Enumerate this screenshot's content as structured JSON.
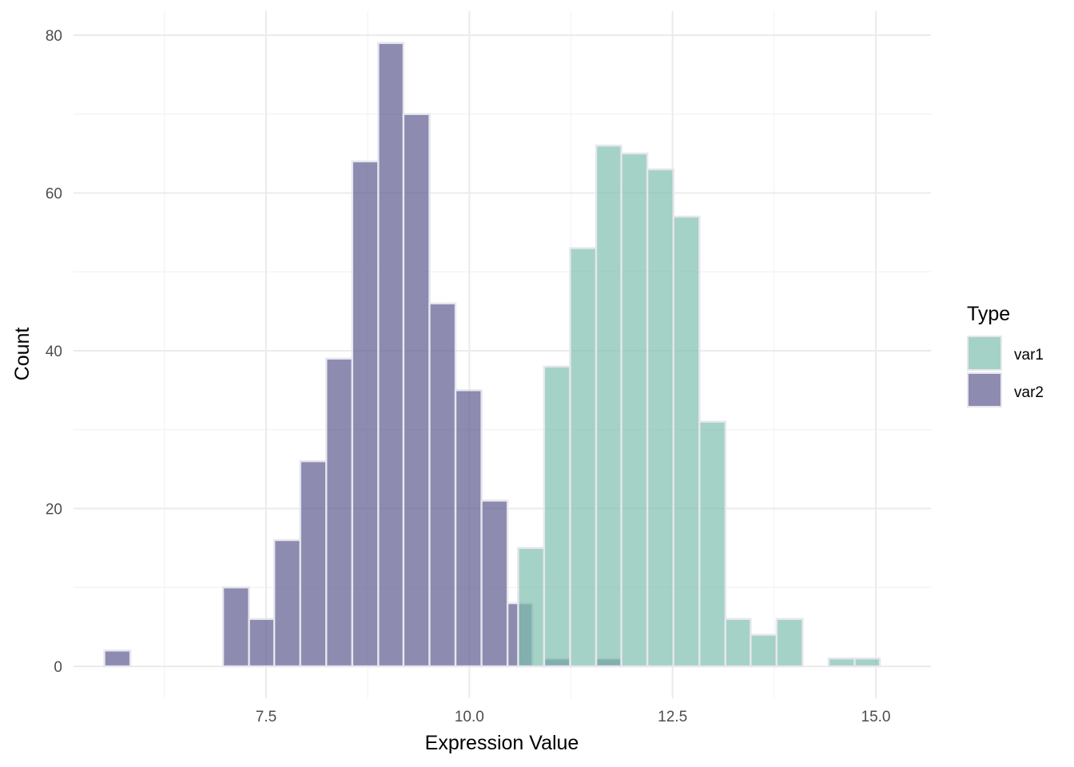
{
  "chart_data": {
    "type": "bar",
    "subtype": "histogram",
    "title": "",
    "xlabel": "Expression Value",
    "ylabel": "Count",
    "xlim": [
      5.4,
      15.6
    ],
    "ylim": [
      -3,
      80
    ],
    "x_ticks": [
      7.5,
      10.0,
      12.5,
      15.0
    ],
    "x_tick_labels": [
      "7.5",
      "10.0",
      "12.5",
      "15.0"
    ],
    "y_ticks": [
      0,
      20,
      40,
      60,
      80
    ],
    "y_tick_labels": [
      "0",
      "20",
      "40",
      "60",
      "80"
    ],
    "grid": true,
    "legend_position": "right",
    "legend_title": "Type",
    "bin_width": 0.3183,
    "bin_start": 5.51,
    "series": [
      {
        "name": "var1",
        "color": "#7fbfae",
        "bins": [
          {
            "x0": 10.6,
            "x1": 10.92,
            "count": 15
          },
          {
            "x0": 10.92,
            "x1": 11.24,
            "count": 38
          },
          {
            "x0": 11.24,
            "x1": 11.56,
            "count": 53
          },
          {
            "x0": 11.56,
            "x1": 11.87,
            "count": 66
          },
          {
            "x0": 11.87,
            "x1": 12.19,
            "count": 65
          },
          {
            "x0": 12.19,
            "x1": 12.51,
            "count": 63
          },
          {
            "x0": 12.51,
            "x1": 12.83,
            "count": 57
          },
          {
            "x0": 12.83,
            "x1": 13.15,
            "count": 31
          },
          {
            "x0": 13.15,
            "x1": 13.46,
            "count": 6
          },
          {
            "x0": 13.46,
            "x1": 13.78,
            "count": 4
          },
          {
            "x0": 13.78,
            "x1": 14.1,
            "count": 6
          },
          {
            "x0": 14.42,
            "x1": 14.74,
            "count": 1
          },
          {
            "x0": 14.74,
            "x1": 15.05,
            "count": 1
          }
        ]
      },
      {
        "name": "var2",
        "color": "#5c5a8f",
        "bins": [
          {
            "x0": 5.51,
            "x1": 5.83,
            "count": 2
          },
          {
            "x0": 6.97,
            "x1": 7.29,
            "count": 10
          },
          {
            "x0": 7.29,
            "x1": 7.6,
            "count": 6
          },
          {
            "x0": 7.6,
            "x1": 7.92,
            "count": 16
          },
          {
            "x0": 7.92,
            "x1": 8.24,
            "count": 26
          },
          {
            "x0": 8.24,
            "x1": 8.56,
            "count": 39
          },
          {
            "x0": 8.56,
            "x1": 8.88,
            "count": 64
          },
          {
            "x0": 8.88,
            "x1": 9.19,
            "count": 79
          },
          {
            "x0": 9.19,
            "x1": 9.51,
            "count": 70
          },
          {
            "x0": 9.51,
            "x1": 9.83,
            "count": 46
          },
          {
            "x0": 9.83,
            "x1": 10.15,
            "count": 35
          },
          {
            "x0": 10.15,
            "x1": 10.47,
            "count": 21
          },
          {
            "x0": 10.47,
            "x1": 10.78,
            "count": 8
          },
          {
            "x0": 10.92,
            "x1": 11.24,
            "count": 1
          },
          {
            "x0": 11.56,
            "x1": 11.87,
            "count": 1
          }
        ]
      }
    ]
  },
  "colors": {
    "var1": "#7fbfae",
    "var2": "#5c5a8f",
    "bar_outline": "#e6e6ee",
    "grid": "#ebebeb"
  }
}
